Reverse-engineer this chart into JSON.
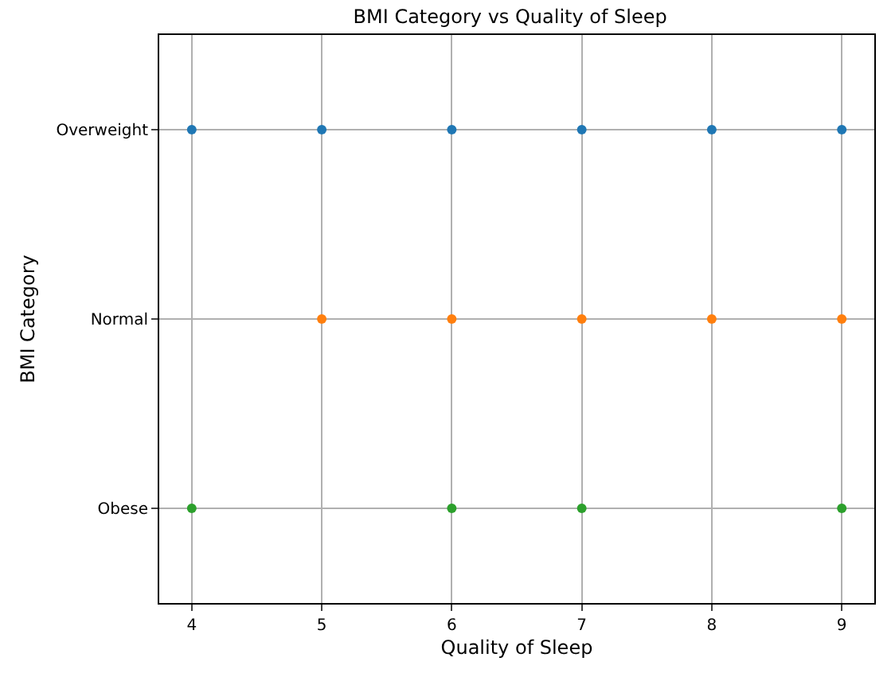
{
  "chart_data": {
    "type": "scatter",
    "title": "BMI Category vs Quality of Sleep",
    "xlabel": "Quality of Sleep",
    "ylabel": "BMI Category",
    "orientation": "horizontal",
    "categories": [
      "Overweight",
      "Normal",
      "Obese"
    ],
    "xlim": [
      3.75,
      9.25
    ],
    "xticks": [
      4,
      5,
      6,
      7,
      8,
      9
    ],
    "grid": true,
    "marker": "circle",
    "series": [
      {
        "color": "#1f77b4",
        "x": [
          "Overweight",
          "Overweight",
          "Overweight",
          "Overweight",
          "Overweight",
          "Overweight"
        ],
        "values": [
          4,
          5,
          6,
          7,
          8,
          9
        ]
      },
      {
        "color": "#ff7f0e",
        "x": [
          "Normal",
          "Normal",
          "Normal",
          "Normal",
          "Normal"
        ],
        "values": [
          5,
          6,
          7,
          8,
          9
        ]
      },
      {
        "color": "#2ca02c",
        "x": [
          "Obese",
          "Obese",
          "Obese",
          "Obese"
        ],
        "values": [
          4,
          6,
          7,
          9
        ]
      }
    ]
  }
}
